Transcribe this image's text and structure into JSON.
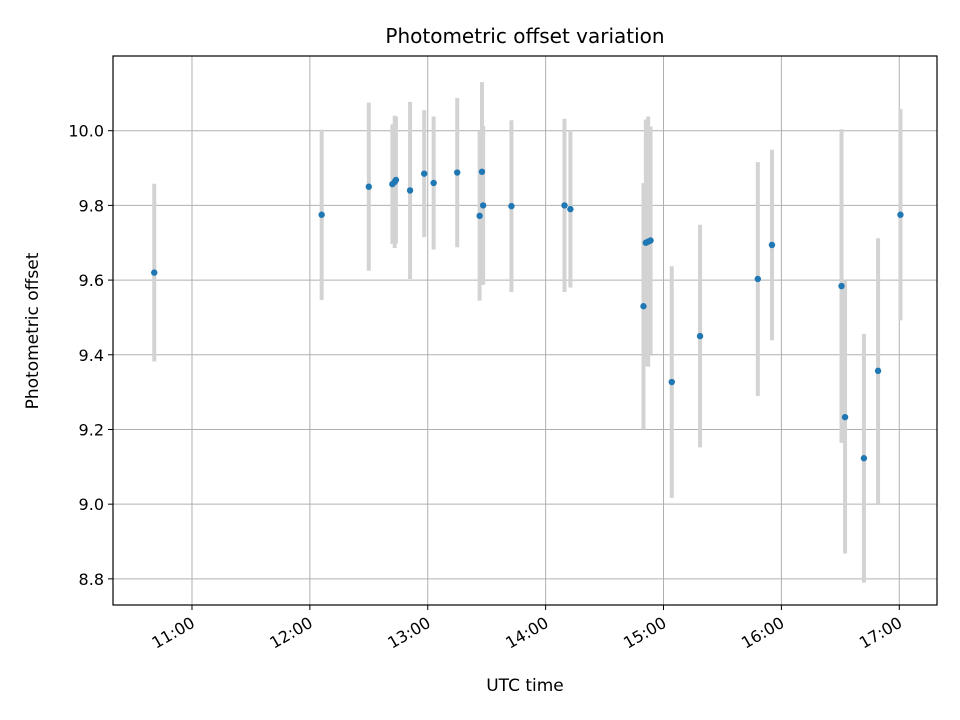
{
  "chart_data": {
    "type": "scatter",
    "title": "Photometric offset variation",
    "xlabel": "UTC time",
    "ylabel": "Photometric offset",
    "x_unit": "hour of day",
    "xlim": [
      10.33,
      17.32
    ],
    "ylim": [
      8.73,
      10.2
    ],
    "grid": true,
    "x_ticks": [
      {
        "value": 11,
        "label": "11:00"
      },
      {
        "value": 12,
        "label": "12:00"
      },
      {
        "value": 13,
        "label": "13:00"
      },
      {
        "value": 14,
        "label": "14:00"
      },
      {
        "value": 15,
        "label": "15:00"
      },
      {
        "value": 16,
        "label": "16:00"
      },
      {
        "value": 17,
        "label": "17:00"
      }
    ],
    "y_ticks": [
      {
        "value": 8.8,
        "label": "8.8"
      },
      {
        "value": 9.0,
        "label": "9.0"
      },
      {
        "value": 9.2,
        "label": "9.2"
      },
      {
        "value": 9.4,
        "label": "9.4"
      },
      {
        "value": 9.6,
        "label": "9.6"
      },
      {
        "value": 9.8,
        "label": "9.8"
      },
      {
        "value": 10.0,
        "label": "10.0"
      }
    ],
    "point_color": "#1f77b4",
    "errorbar_color": "#d3d3d3",
    "points": [
      {
        "x": 10.68,
        "y": 9.62,
        "err": 0.238
      },
      {
        "x": 12.1,
        "y": 9.775,
        "err": 0.228
      },
      {
        "x": 12.5,
        "y": 9.85,
        "err": 0.225
      },
      {
        "x": 12.7,
        "y": 9.857,
        "err": 0.16
      },
      {
        "x": 12.72,
        "y": 9.863,
        "err": 0.177
      },
      {
        "x": 12.73,
        "y": 9.868,
        "err": 0.17
      },
      {
        "x": 12.85,
        "y": 9.84,
        "err": 0.237
      },
      {
        "x": 12.97,
        "y": 9.885,
        "err": 0.17
      },
      {
        "x": 13.05,
        "y": 9.86,
        "err": 0.178
      },
      {
        "x": 13.25,
        "y": 9.888,
        "err": 0.2
      },
      {
        "x": 13.44,
        "y": 9.772,
        "err": 0.227
      },
      {
        "x": 13.46,
        "y": 9.89,
        "err": 0.24
      },
      {
        "x": 13.47,
        "y": 9.8,
        "err": 0.213
      },
      {
        "x": 13.71,
        "y": 9.798,
        "err": 0.23
      },
      {
        "x": 14.16,
        "y": 9.8,
        "err": 0.232
      },
      {
        "x": 14.21,
        "y": 9.79,
        "err": 0.21
      },
      {
        "x": 14.83,
        "y": 9.53,
        "err": 0.33
      },
      {
        "x": 14.85,
        "y": 9.7,
        "err": 0.33
      },
      {
        "x": 14.87,
        "y": 9.703,
        "err": 0.335
      },
      {
        "x": 14.89,
        "y": 9.706,
        "err": 0.305
      },
      {
        "x": 15.07,
        "y": 9.327,
        "err": 0.31
      },
      {
        "x": 15.31,
        "y": 9.45,
        "err": 0.298
      },
      {
        "x": 15.8,
        "y": 9.603,
        "err": 0.313
      },
      {
        "x": 15.92,
        "y": 9.694,
        "err": 0.255
      },
      {
        "x": 16.51,
        "y": 9.584,
        "err": 0.42
      },
      {
        "x": 16.54,
        "y": 9.233,
        "err": 0.365
      },
      {
        "x": 16.7,
        "y": 9.123,
        "err": 0.333
      },
      {
        "x": 16.82,
        "y": 9.357,
        "err": 0.355
      },
      {
        "x": 17.01,
        "y": 9.775,
        "err": 0.283
      }
    ]
  }
}
